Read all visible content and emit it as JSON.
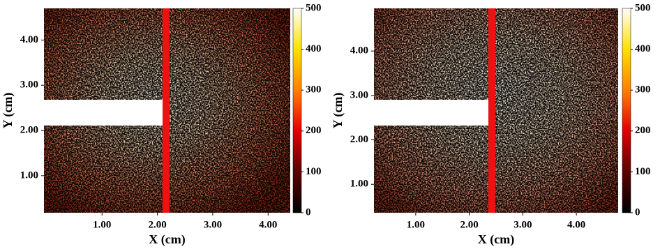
{
  "chart_data": [
    {
      "type": "heatmap",
      "xlabel": "X (cm)",
      "ylabel": "Y (cm)",
      "xlim": [
        -0.05,
        4.4
      ],
      "ylim": [
        0.18,
        4.7
      ],
      "xticks": [
        {
          "value": 1,
          "label": "1.00"
        },
        {
          "value": 2,
          "label": "2.00"
        },
        {
          "value": 3,
          "label": "3.00"
        },
        {
          "value": 4,
          "label": "4.00"
        }
      ],
      "yticks": [
        {
          "value": 1,
          "label": "1.00"
        },
        {
          "value": 2,
          "label": "2.00"
        },
        {
          "value": 3,
          "label": "3.00"
        },
        {
          "value": 4,
          "label": "4.00"
        }
      ],
      "colormap": "hot",
      "clim": [
        0,
        500
      ],
      "cticks": [
        0,
        100,
        200,
        300,
        400,
        500
      ]
    },
    {
      "type": "heatmap",
      "xlabel": "X (cm)",
      "ylabel": "Y (cm)",
      "xlim": [
        0.22,
        4.78
      ],
      "ylim": [
        0.36,
        4.96
      ],
      "xticks": [
        {
          "value": 1,
          "label": "1.00"
        },
        {
          "value": 2,
          "label": "2.00"
        },
        {
          "value": 3,
          "label": "3.00"
        },
        {
          "value": 4,
          "label": "4.00"
        }
      ],
      "yticks": [
        {
          "value": 1,
          "label": "1.00"
        },
        {
          "value": 2,
          "label": "2.00"
        },
        {
          "value": 3,
          "label": "3.00"
        },
        {
          "value": 4,
          "label": "4.00"
        }
      ],
      "colormap": "hot",
      "clim": [
        0,
        500
      ],
      "cticks": [
        0,
        100,
        200,
        300,
        400,
        500
      ]
    }
  ]
}
